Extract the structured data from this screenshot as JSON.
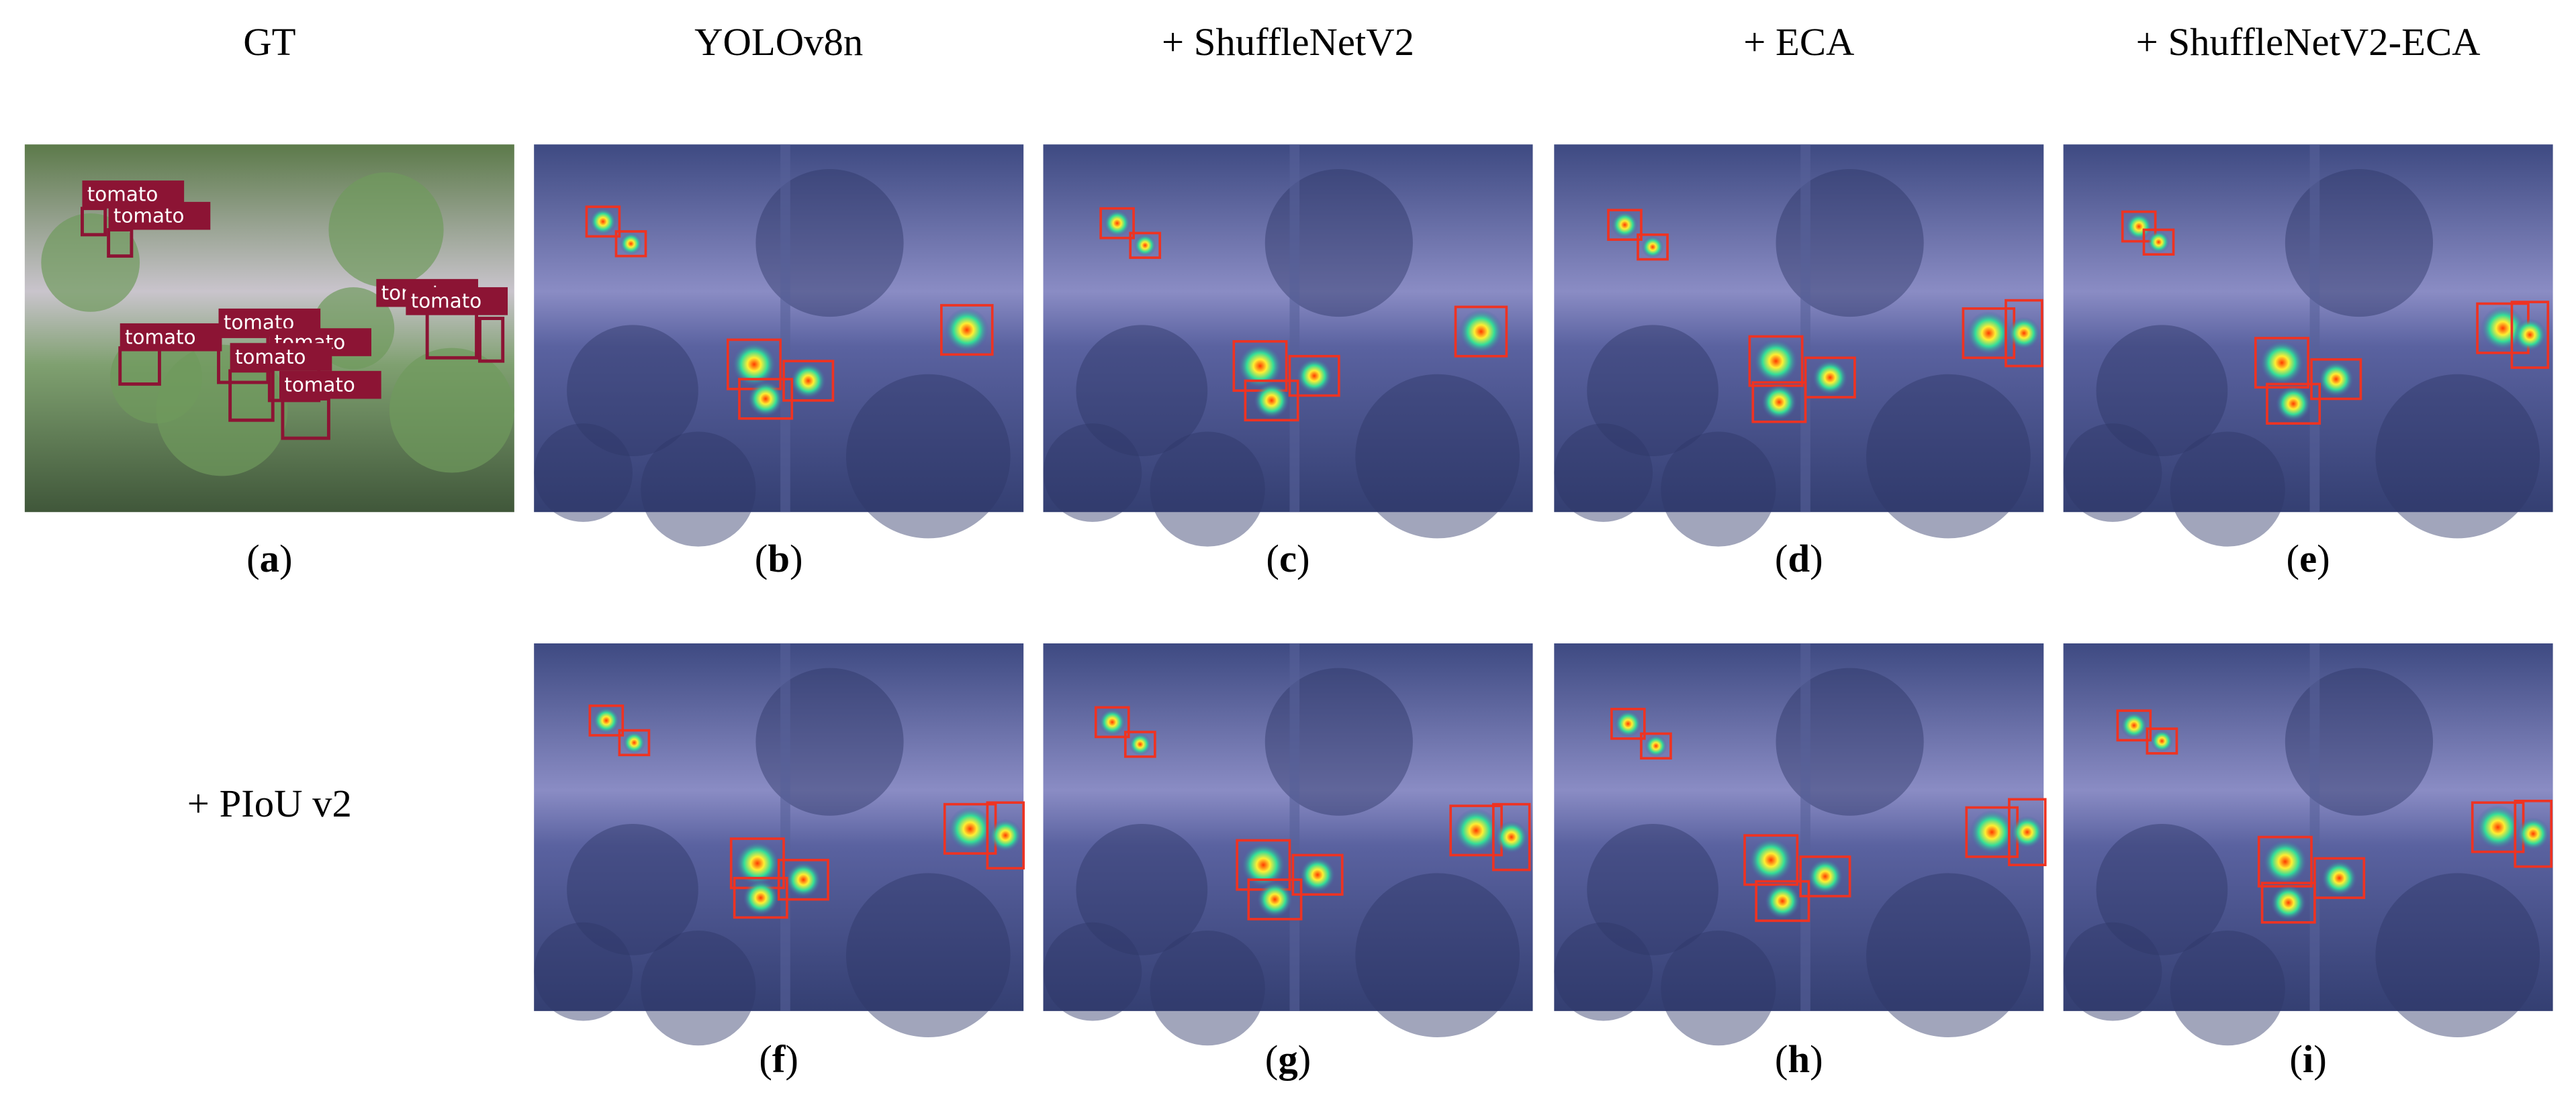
{
  "headers": [
    "GT",
    "YOLOv8n",
    "+ ShuffleNetV2",
    "+ ECA",
    "+ ShuffleNetV2-ECA"
  ],
  "row_label": "+ PIoU v2",
  "panels": [
    {
      "label": "(a)"
    },
    {
      "label": "(b)"
    },
    {
      "label": "(c)"
    },
    {
      "label": "(d)"
    },
    {
      "label": "(e)"
    },
    {
      "label": "(f)"
    },
    {
      "label": "(g)"
    },
    {
      "label": "(h)"
    },
    {
      "label": "(i)"
    }
  ],
  "gt_labels": [
    "tomato",
    "tomato",
    "tomato",
    "tomato",
    "tomato",
    "tomato",
    "tomato",
    "tomato",
    "tomato"
  ]
}
